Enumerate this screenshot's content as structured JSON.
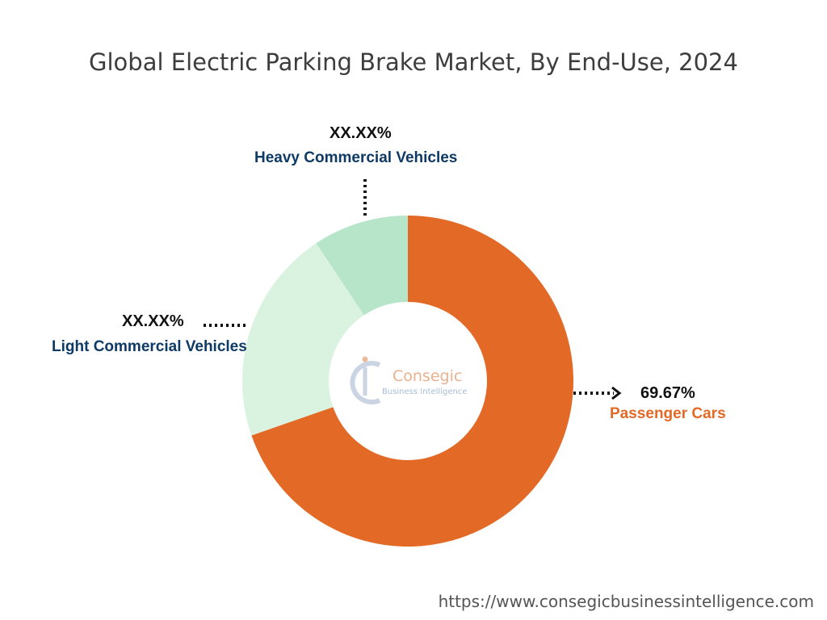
{
  "title": "Global Electric Parking Brake Market, By End-Use, 2024",
  "chart_data": {
    "type": "pie",
    "donut": true,
    "slices": [
      {
        "label": "Passenger Cars",
        "value": 69.67,
        "display": "69.67%",
        "color": "#e36927",
        "label_color": "#e36927"
      },
      {
        "label": "Light Commercial Vehicles",
        "value": 20.99,
        "display": "XX.XX%",
        "color": "#daf3e1",
        "label_color": "#0e3a66"
      },
      {
        "label": "Heavy Commercial Vehicles",
        "value": 9.34,
        "display": "XX.XX%",
        "color": "#b7e5c9",
        "label_color": "#0e3a66"
      }
    ]
  },
  "logo": {
    "name": "Consegic",
    "tagline": "Business Intelligence"
  },
  "footer": {
    "url": "https://www.consegicbusinessintelligence.com"
  }
}
